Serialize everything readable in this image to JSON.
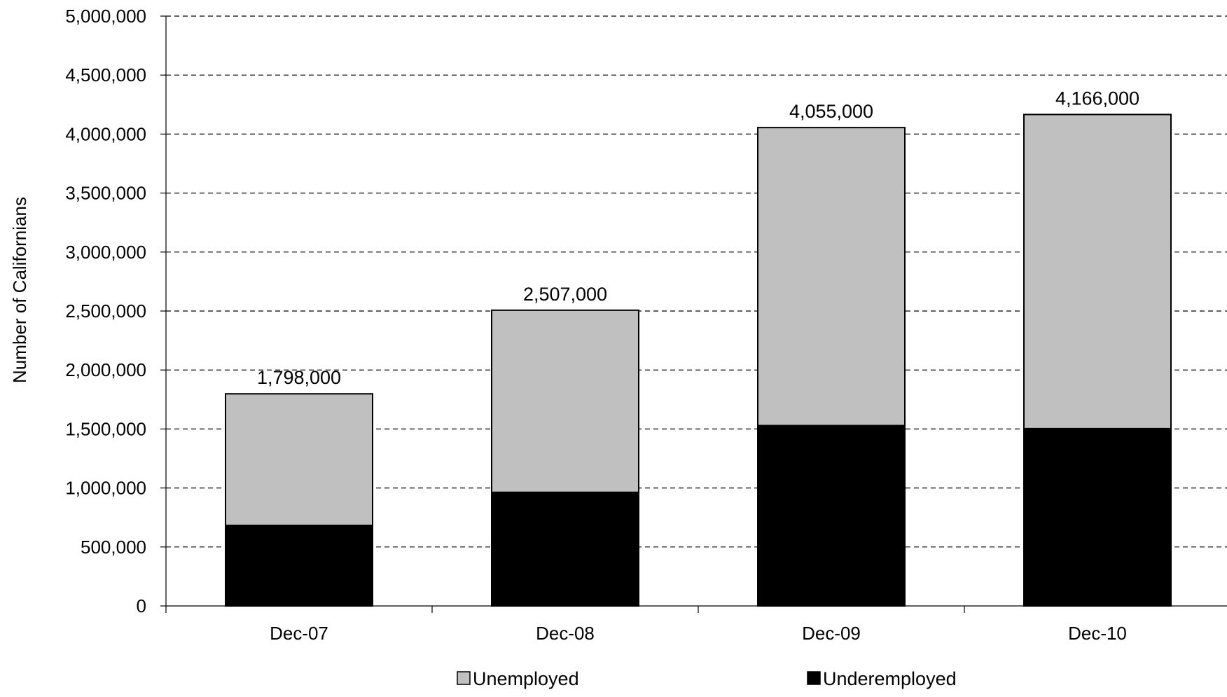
{
  "chart_data": {
    "type": "bar",
    "stacked": true,
    "categories": [
      "Dec-07",
      "Dec-08",
      "Dec-09",
      "Dec-10"
    ],
    "series": [
      {
        "name": "Underemployed",
        "values": [
          690000,
          970000,
          1535000,
          1510000
        ],
        "color": "#000000"
      },
      {
        "name": "Unemployed",
        "values": [
          1108000,
          1537000,
          2520000,
          2656000
        ],
        "color": "#c0c0c0"
      }
    ],
    "totals": [
      1798000,
      2507000,
      4055000,
      4166000
    ],
    "total_labels": [
      "1,798,000",
      "2,507,000",
      "4,055,000",
      "4,166,000"
    ],
    "ylabel": "Number of Californians",
    "xlabel": "",
    "ylim": [
      0,
      5000000
    ],
    "yticks": [
      0,
      500000,
      1000000,
      1500000,
      2000000,
      2500000,
      3000000,
      3500000,
      4000000,
      4500000,
      5000000
    ],
    "ytick_labels": [
      "0",
      "500,000",
      "1,000,000",
      "1,500,000",
      "2,000,000",
      "2,500,000",
      "3,000,000",
      "3,500,000",
      "4,000,000",
      "4,500,000",
      "5,000,000"
    ],
    "grid": true,
    "grid_style": "dashed",
    "legend_position": "bottom",
    "legend": [
      {
        "label": "Unemployed",
        "color": "#c0c0c0"
      },
      {
        "label": "Underemployed",
        "color": "#000000"
      }
    ]
  }
}
